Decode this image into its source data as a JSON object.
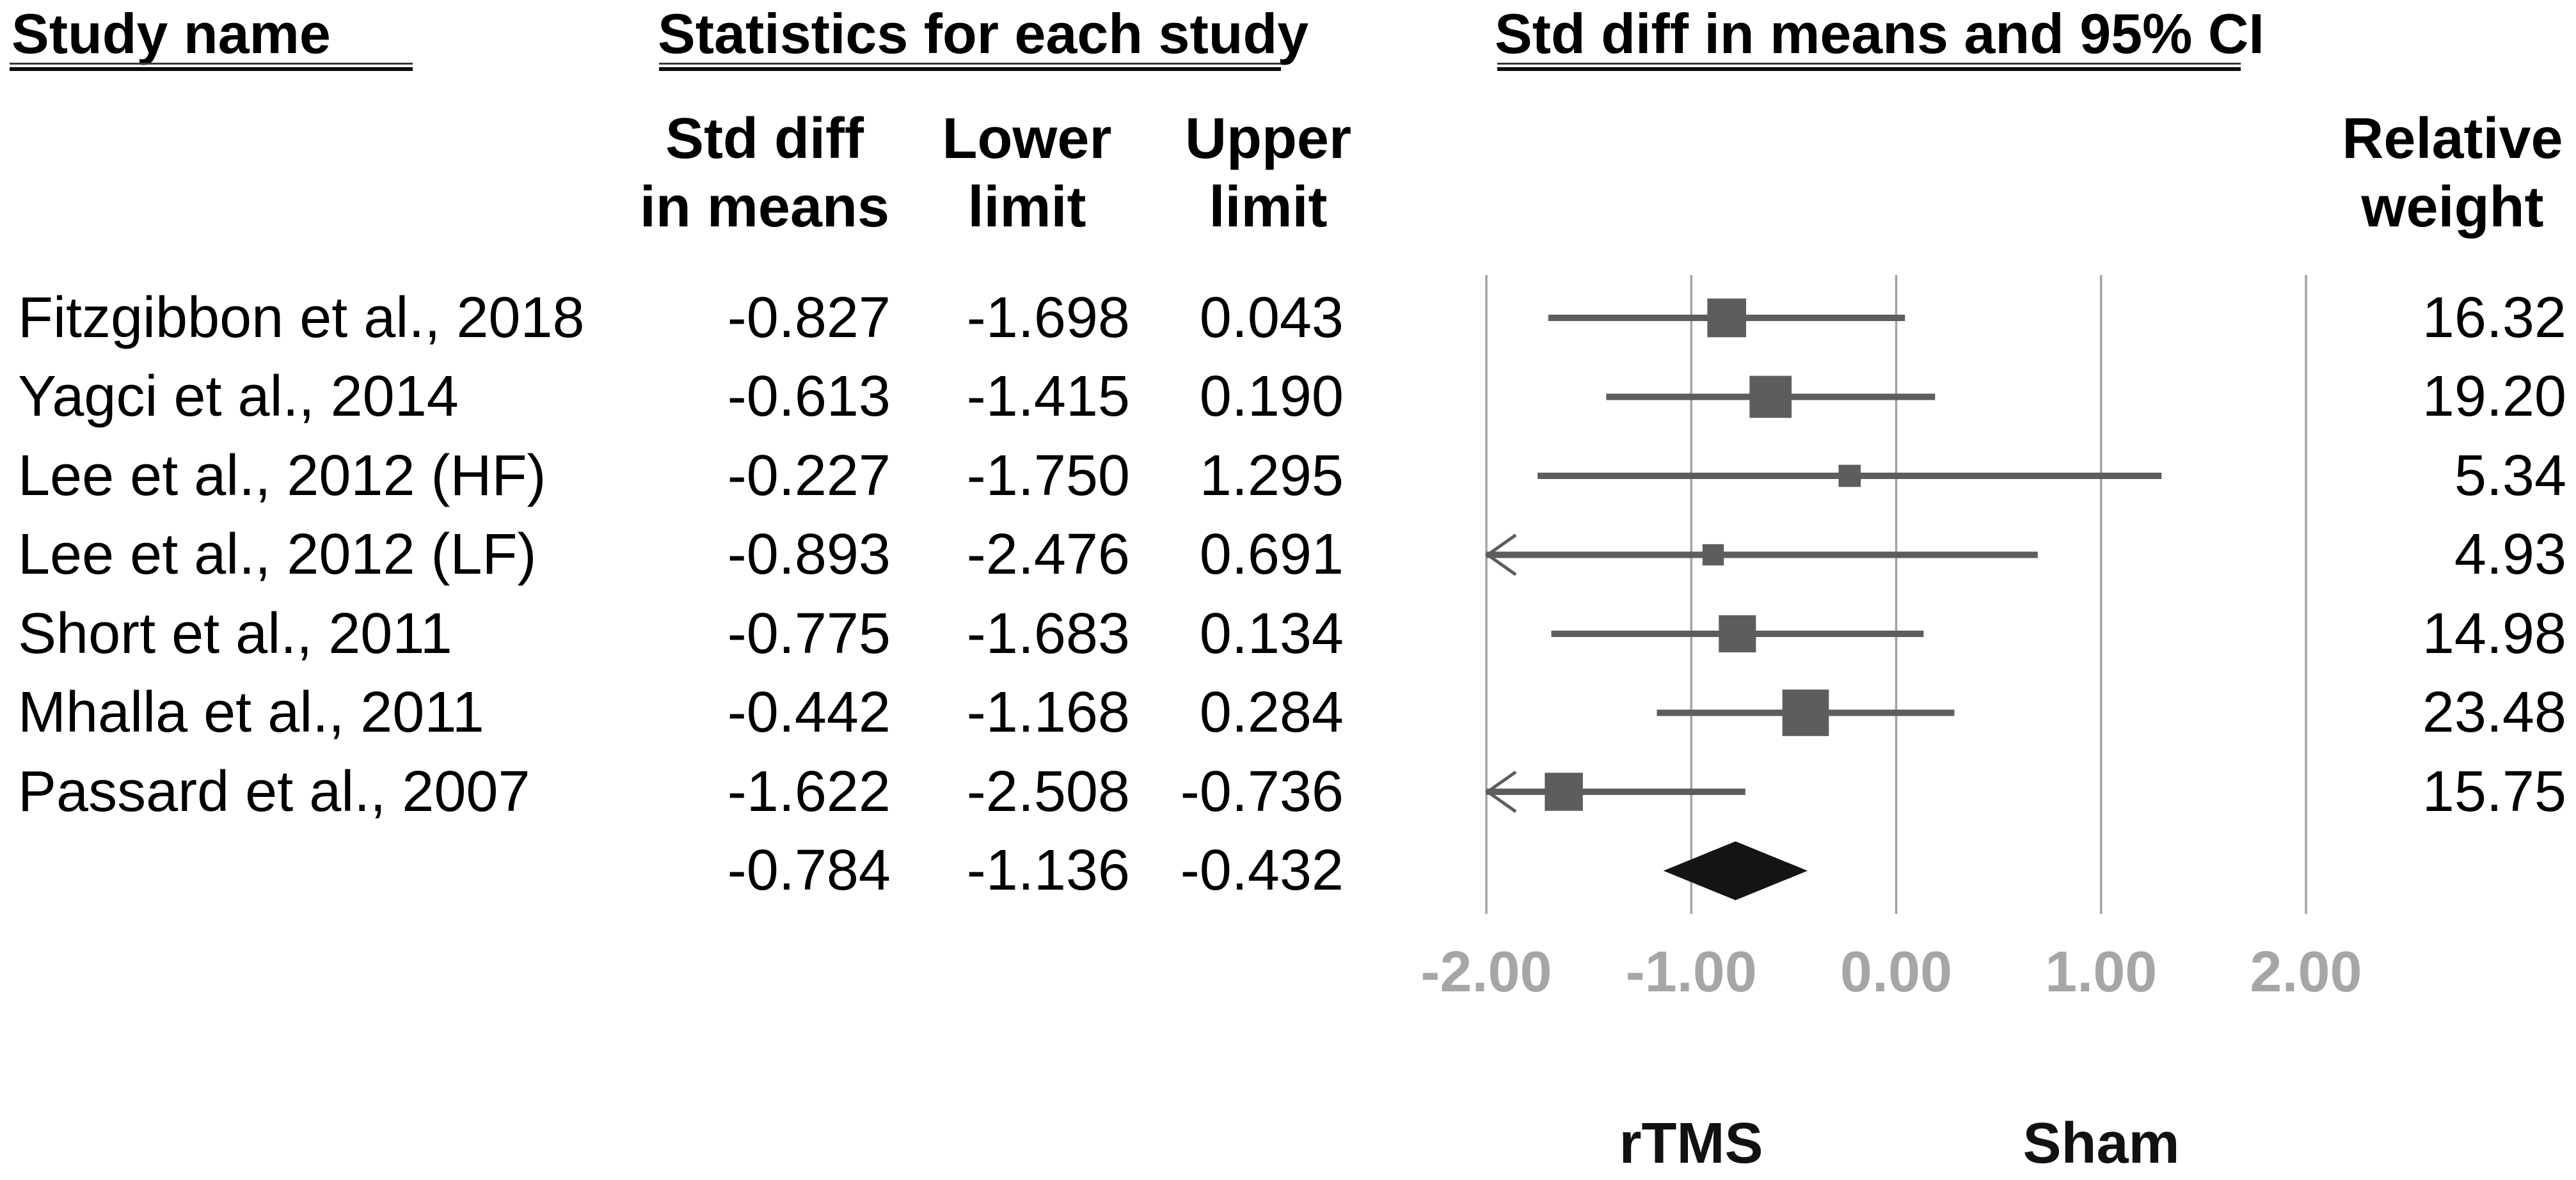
{
  "headers": {
    "study_name": "Study name",
    "statistics": "Statistics for each study",
    "ci_plot": "Std diff in means and 95% CI"
  },
  "subheaders": {
    "effect_line1": "Std diff",
    "effect_line2": "in means",
    "lower_line1": "Lower",
    "lower_line2": "limit",
    "upper_line1": "Upper",
    "upper_line2": "limit",
    "weight_line1": "Relative",
    "weight_line2": "weight"
  },
  "footer": {
    "left_label": "rTMS",
    "right_label": "Sham"
  },
  "colors": {
    "text": "#000000",
    "marker": "#5d5d5d",
    "ci_line": "#5d5d5d",
    "gridline": "#a4a4a4",
    "axis_label": "#a6a6a6",
    "diamond": "#141414"
  },
  "chart_data": {
    "type": "forest",
    "title": "Std diff in means and 95% CI",
    "effect_measure": "Std diff in means",
    "x_axis": {
      "min": -2,
      "max": 2,
      "tick_values": [
        -2,
        -1,
        0,
        1,
        2
      ],
      "tick_labels": [
        "-2.00",
        "-1.00",
        "0.00",
        "1.00",
        "2.00"
      ],
      "grid": true
    },
    "studies": [
      {
        "name": "Fitzgibbon et al., 2018",
        "effect": -0.827,
        "lower": -1.698,
        "upper": 0.043,
        "weight": 16.32
      },
      {
        "name": "Yagci et al., 2014",
        "effect": -0.613,
        "lower": -1.415,
        "upper": 0.19,
        "weight": 19.2
      },
      {
        "name": "Lee et al., 2012 (HF)",
        "effect": -0.227,
        "lower": -1.75,
        "upper": 1.295,
        "weight": 5.34
      },
      {
        "name": "Lee et al., 2012 (LF)",
        "effect": -0.893,
        "lower": -2.476,
        "upper": 0.691,
        "weight": 4.93
      },
      {
        "name": "Short et al., 2011",
        "effect": -0.775,
        "lower": -1.683,
        "upper": 0.134,
        "weight": 14.98
      },
      {
        "name": "Mhalla et al., 2011",
        "effect": -0.442,
        "lower": -1.168,
        "upper": 0.284,
        "weight": 23.48
      },
      {
        "name": "Passard et al., 2007",
        "effect": -1.622,
        "lower": -2.508,
        "upper": -0.736,
        "weight": 15.75
      }
    ],
    "overall": {
      "effect": -0.784,
      "lower": -1.136,
      "upper": -0.432
    },
    "favors_left_label": "rTMS",
    "favors_right_label": "Sham",
    "legend_position": "none"
  }
}
